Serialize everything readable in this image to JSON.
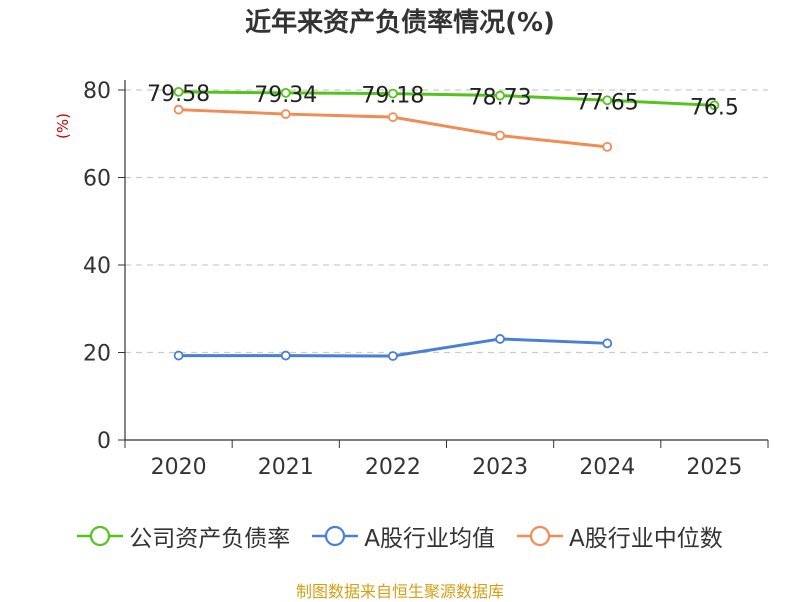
{
  "chart_data": {
    "type": "line",
    "title": "近年来资产负债率情况(%)",
    "ylabel": "(%)",
    "xlabel": "",
    "ylim": [
      0,
      80
    ],
    "yticks": [
      0,
      20,
      40,
      60,
      80
    ],
    "grid": true,
    "legend_position": "bottom",
    "categories": [
      "2020",
      "2021",
      "2022",
      "2023",
      "2024",
      "2025"
    ],
    "series": [
      {
        "name": "公司资产负债率",
        "color": "#52c41a",
        "values": [
          79.58,
          79.34,
          79.18,
          78.73,
          77.65,
          76.5
        ],
        "labels": [
          "79.58",
          "79.34",
          "79.18",
          "78.73",
          "77.65",
          "76.5"
        ]
      },
      {
        "name": "A股行业均值",
        "color": "#4a7fd6",
        "values": [
          19.3,
          19.3,
          19.2,
          23.1,
          22.1,
          null
        ]
      },
      {
        "name": "A股行业中位数",
        "color": "#f28c55",
        "values": [
          75.5,
          74.5,
          73.8,
          69.6,
          67.0,
          null
        ]
      }
    ]
  },
  "source": "制图数据来自恒生聚源数据库"
}
